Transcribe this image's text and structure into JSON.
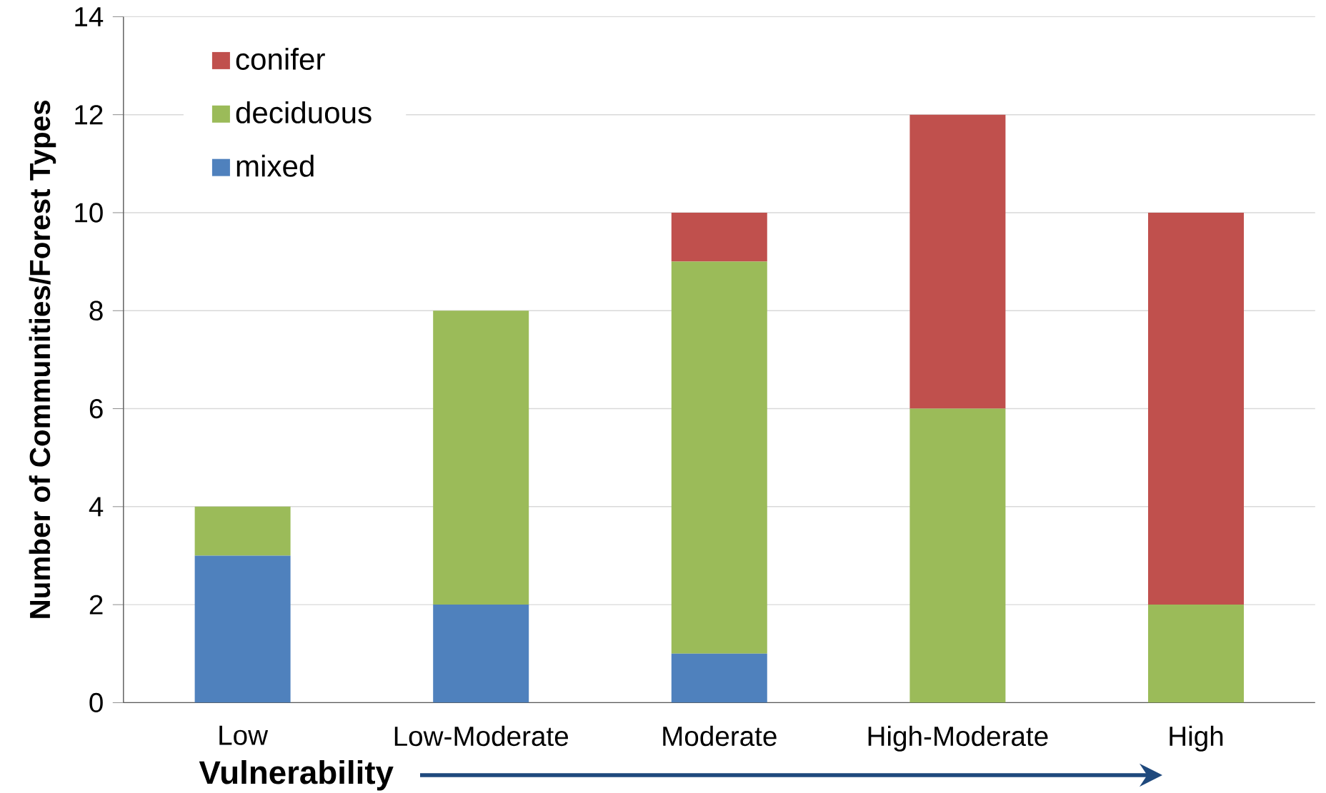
{
  "chart_data": {
    "type": "bar",
    "stacked": true,
    "xlabel": "Vulnerability",
    "ylabel": "Number of Communities/Forest Types",
    "categories": [
      "Low",
      "Low-Moderate",
      "Moderate",
      "High-Moderate",
      "High"
    ],
    "series": [
      {
        "name": "mixed",
        "color": "#4f81bd",
        "values": [
          3,
          2,
          1,
          0,
          0
        ]
      },
      {
        "name": "deciduous",
        "color": "#9bbb59",
        "values": [
          1,
          6,
          8,
          6,
          2
        ]
      },
      {
        "name": "conifer",
        "color": "#c0504d",
        "values": [
          0,
          0,
          1,
          6,
          8
        ]
      }
    ],
    "ylim": [
      0,
      14
    ],
    "yticks": [
      0,
      2,
      4,
      6,
      8,
      10,
      12,
      14
    ],
    "grid": "y",
    "legend": "top left"
  }
}
